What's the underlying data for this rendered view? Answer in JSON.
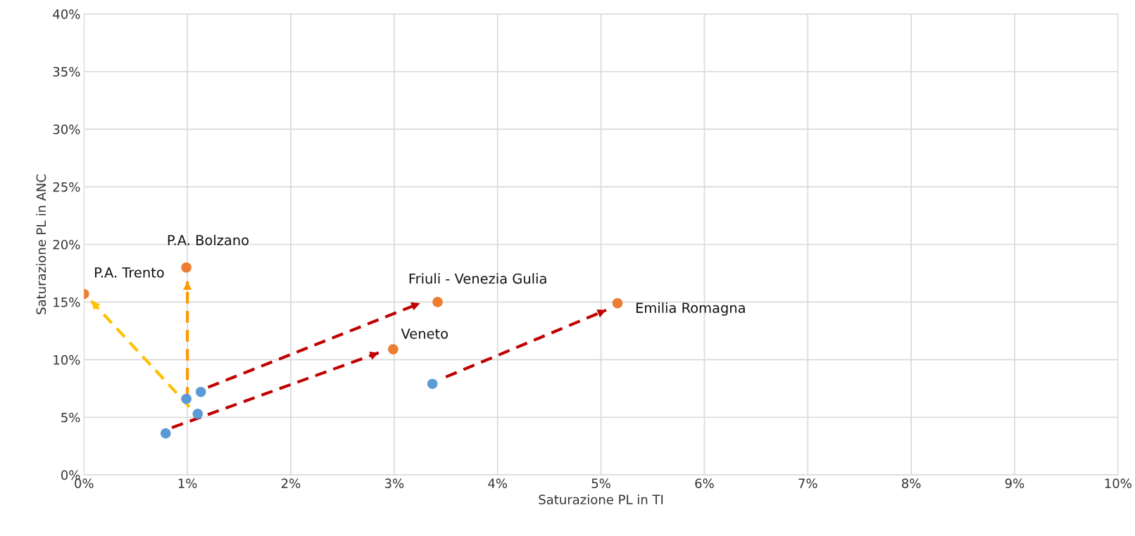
{
  "chart_data": {
    "type": "scatter",
    "xlabel": "Saturazione PL in TI",
    "ylabel": "Saturazione PL in ANC",
    "xlim": [
      0,
      10
    ],
    "ylim": [
      0,
      40
    ],
    "xticks": [
      {
        "value": 0,
        "label": "0%"
      },
      {
        "value": 1,
        "label": "1%"
      },
      {
        "value": 2,
        "label": "2%"
      },
      {
        "value": 3,
        "label": "3%"
      },
      {
        "value": 4,
        "label": "4%"
      },
      {
        "value": 5,
        "label": "5%"
      },
      {
        "value": 6,
        "label": "6%"
      },
      {
        "value": 7,
        "label": "7%"
      },
      {
        "value": 8,
        "label": "8%"
      },
      {
        "value": 9,
        "label": "9%"
      },
      {
        "value": 10,
        "label": "10%"
      }
    ],
    "yticks": [
      {
        "value": 0,
        "label": "0%"
      },
      {
        "value": 5,
        "label": "5%"
      },
      {
        "value": 10,
        "label": "10%"
      },
      {
        "value": 15,
        "label": "15%"
      },
      {
        "value": 20,
        "label": "20%"
      },
      {
        "value": 25,
        "label": "25%"
      },
      {
        "value": 30,
        "label": "30%"
      },
      {
        "value": 35,
        "label": "35%"
      },
      {
        "value": 40,
        "label": "40%"
      }
    ],
    "grid": true,
    "legend": false,
    "marker": "circle",
    "series": [
      {
        "type": "line",
        "marker": "none",
        "line_style": "dashed",
        "color": "#ffc000",
        "x": [
          1.02,
          0.07
        ],
        "values": [
          5.9,
          15.1
        ]
      },
      {
        "type": "line",
        "marker": "none",
        "line_style": "dashed",
        "color": "#ff9900",
        "x": [
          1.0,
          1.0
        ],
        "values": [
          6.6,
          16.8
        ]
      },
      {
        "type": "line",
        "line_style": "dashed",
        "color": "#c00000",
        "marker": "none",
        "x": [
          1.2,
          3.25
        ],
        "values": [
          7.6,
          14.9
        ]
      },
      {
        "type": "line",
        "line_style": "dashed",
        "color": "#c00000",
        "marker": "none",
        "x": [
          0.85,
          2.85
        ],
        "values": [
          4.1,
          10.6
        ]
      },
      {
        "type": "line",
        "line_style": "dashed",
        "color": "#c00000",
        "marker": "none",
        "x": [
          3.5,
          5.05
        ],
        "values": [
          8.5,
          14.3
        ]
      },
      {
        "color": "#5b9bd5",
        "x": [
          0.79,
          0.99,
          1.13,
          1.1,
          3.37
        ],
        "values": [
          3.6,
          6.6,
          7.2,
          5.3,
          7.9
        ]
      },
      {
        "color": "#ed7d31",
        "x": [
          0,
          0.99,
          3.42,
          2.99,
          5.16
        ],
        "values": [
          15.7,
          18.0,
          15.0,
          10.9,
          14.9
        ]
      }
    ],
    "annotations": [
      {
        "text": "P.A. Trento",
        "x": 0,
        "y": 15.7
      },
      {
        "text": "P.A. Bolzano",
        "x": 0.99,
        "y": 18.0
      },
      {
        "text": "Friuli - Venezia Gulia",
        "x": 3.42,
        "y": 15.0
      },
      {
        "text": "Veneto",
        "x": 2.99,
        "y": 10.9
      },
      {
        "text": "Emilia Romagna",
        "x": 5.16,
        "y": 14.9
      }
    ]
  }
}
